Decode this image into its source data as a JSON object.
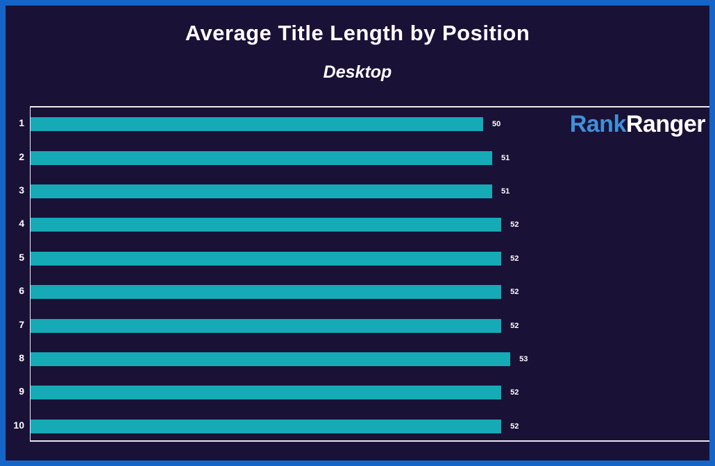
{
  "title": "Average Title Length by Position",
  "subtitle": "Desktop",
  "logo": {
    "part1": "Rank",
    "part2": "Ranger",
    "part1_color": "#3f90d8",
    "part2_color": "#ffffff"
  },
  "colors": {
    "background": "#1a1136",
    "frame_border": "#1565c8",
    "bar": "#15aab6",
    "plot_border": "#eceaf2",
    "text": "#ffffff"
  },
  "chart_data": {
    "type": "bar",
    "orientation": "horizontal",
    "title": "Average Title Length by Position",
    "subtitle": "Desktop",
    "categories": [
      "1",
      "2",
      "3",
      "4",
      "5",
      "6",
      "7",
      "8",
      "9",
      "10"
    ],
    "values": [
      50,
      51,
      51,
      52,
      52,
      52,
      52,
      53,
      52,
      52
    ],
    "xlabel": "",
    "ylabel": "",
    "xlim": [
      0,
      75
    ],
    "grid": false,
    "legend": false,
    "value_labels_shown": true,
    "bar_color": "#15aab6"
  }
}
